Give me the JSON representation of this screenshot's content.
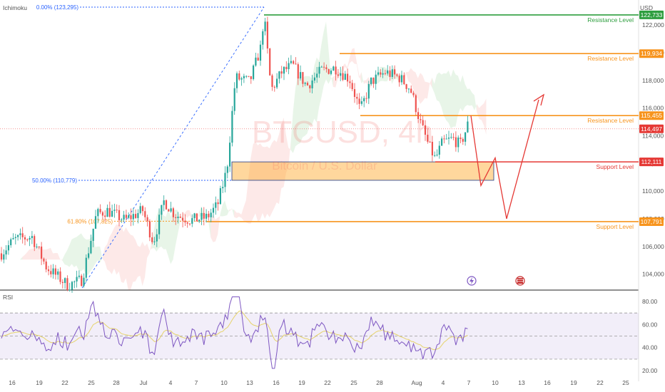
{
  "header": {
    "currency": "USD",
    "indicator": "Ichimoku"
  },
  "watermark": {
    "symbol": "BTCUSD, 4h",
    "description": "Bitcoin / U.S. Dollar"
  },
  "colors": {
    "up": "#26a69a",
    "down": "#ef5350",
    "resistance_major": "#2e9e3f",
    "orange": "#f7941d",
    "support_red": "#e53935",
    "fib": "#2962ff",
    "rsi": "#7e57c2",
    "projection": "#e53935"
  },
  "chart_data": [
    {
      "type": "candlestick",
      "title": "BTCUSD, 4h",
      "currency": "USD",
      "ylim": [
        103000,
        123500
      ],
      "y_ticks": [
        "122,000",
        "120,000",
        "118,000",
        "116,000",
        "114,000",
        "112,000",
        "110,000",
        "108,000",
        "106,000",
        "104,000"
      ],
      "y_tick_values": [
        122000,
        120000,
        118000,
        116000,
        114000,
        112000,
        110000,
        108000,
        106000,
        104000
      ],
      "x_ticks": [
        "16",
        "19",
        "22",
        "25",
        "28",
        "Jul",
        "4",
        "7",
        "10",
        "13",
        "16",
        "19",
        "22",
        "25",
        "28",
        "Aug",
        "4",
        "7",
        "10",
        "13",
        "16",
        "19",
        "22",
        "25"
      ],
      "levels": [
        {
          "label": "Resistance Level",
          "value": 122733,
          "tag": "122,733",
          "color": "#2e9e3f"
        },
        {
          "label": "Resistance Level",
          "value": 119934,
          "tag": "119,934",
          "color": "#f7941d"
        },
        {
          "label": "Resistance Level",
          "value": 115455,
          "tag": "115,455",
          "color": "#f7941d"
        },
        {
          "label": "Support Level",
          "value": 112111,
          "tag": "112,111",
          "color": "#e53935"
        },
        {
          "label": "Support Level",
          "value": 107791,
          "tag": "107,791",
          "color": "#f7941d"
        }
      ],
      "current_price": {
        "value": 114497,
        "tag": "114,497"
      },
      "fibonacci": [
        {
          "label": "0.00% (123,295)",
          "value": 123295
        },
        {
          "label": "50.00% (110,779)",
          "value": 110779
        },
        {
          "label": "61.80% (107,825)",
          "value": 107825
        }
      ],
      "zone": {
        "from": 110779,
        "to": 112111
      },
      "projection": [
        115455,
        110400,
        112400,
        108000,
        116600
      ]
    },
    {
      "type": "line",
      "title": "RSI",
      "ylim": [
        17,
        88
      ],
      "y_ticks": [
        "80.00",
        "60.00",
        "40.00",
        "20.00"
      ],
      "y_tick_values": [
        80,
        60,
        40,
        20
      ],
      "bands": [
        30,
        50,
        70
      ]
    }
  ]
}
